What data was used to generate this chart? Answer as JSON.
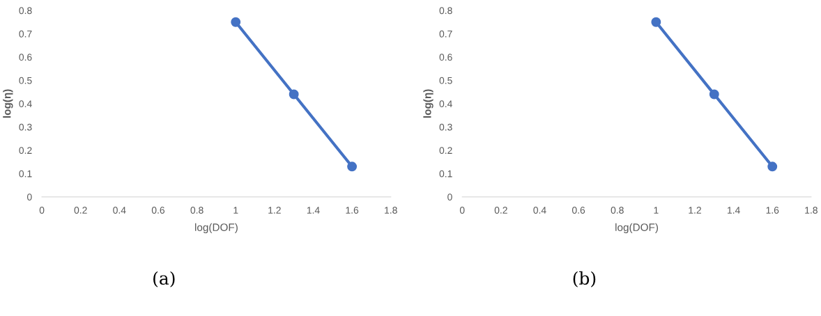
{
  "chart_data": [
    {
      "type": "line",
      "xlabel": "log(DOF)",
      "ylabel": "log(η)",
      "x": [
        1,
        1.3,
        1.6
      ],
      "series": [
        {
          "color": "#4472c4",
          "values": [
            0.75,
            0.44,
            0.13
          ]
        }
      ],
      "xlim": [
        0,
        1.8
      ],
      "ylim": [
        0,
        0.8
      ],
      "xticks": [
        0,
        0.2,
        0.4,
        0.6,
        0.8,
        1,
        1.2,
        1.4,
        1.6,
        1.8
      ],
      "yticks": [
        0,
        0.1,
        0.2,
        0.3,
        0.4,
        0.5,
        0.6,
        0.7,
        0.8
      ],
      "grid": false,
      "marker": "circle",
      "line_style": "solid",
      "annotations": [
        "(a)"
      ]
    },
    {
      "type": "line",
      "xlabel": "log(DOF)",
      "ylabel": "log(η)",
      "x": [
        1,
        1.3,
        1.6
      ],
      "series": [
        {
          "color": "#4472c4",
          "values": [
            0.75,
            0.44,
            0.13
          ]
        }
      ],
      "xlim": [
        0,
        1.8
      ],
      "ylim": [
        0,
        0.8
      ],
      "xticks": [
        0,
        0.2,
        0.4,
        0.6,
        0.8,
        1,
        1.2,
        1.4,
        1.6,
        1.8
      ],
      "yticks": [
        0,
        0.1,
        0.2,
        0.3,
        0.4,
        0.5,
        0.6,
        0.7,
        0.8
      ],
      "grid": false,
      "marker": "circle",
      "line_style": "solid",
      "annotations": [
        "(b)"
      ]
    }
  ]
}
